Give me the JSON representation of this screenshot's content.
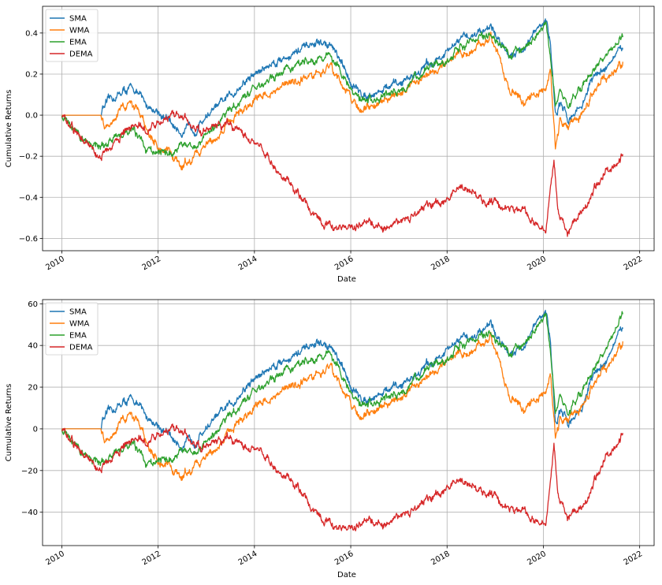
{
  "chart_data": [
    {
      "type": "line",
      "xlabel": "Date",
      "ylabel": "Cumulative Returns",
      "xlim": [
        2009.6,
        2022.3
      ],
      "ylim": [
        -0.66,
        0.53
      ],
      "xticks": [
        2010,
        2012,
        2014,
        2016,
        2018,
        2020,
        2022
      ],
      "yticks": [
        -0.6,
        -0.4,
        -0.2,
        0.0,
        0.2,
        0.4
      ],
      "ytick_labels": [
        "−0.6",
        "−0.4",
        "−0.2",
        "0.0",
        "0.2",
        "0.4"
      ],
      "grid": true,
      "legend_position": "top-left",
      "series": [
        {
          "name": "SMA",
          "color": "#1f77b4",
          "x": [
            2010.0,
            2010.4,
            2010.82,
            2010.83,
            2011.0,
            2011.3,
            2011.5,
            2011.75,
            2012.0,
            2012.3,
            2012.5,
            2012.8,
            2013.0,
            2013.3,
            2013.6,
            2014.0,
            2014.5,
            2015.0,
            2015.3,
            2015.6,
            2015.9,
            2016.2,
            2016.5,
            2017.0,
            2017.5,
            2018.0,
            2018.3,
            2018.6,
            2018.9,
            2019.0,
            2019.3,
            2019.6,
            2019.9,
            2020.05,
            2020.15,
            2020.25,
            2020.35,
            2020.5,
            2020.8,
            2021.0,
            2021.3,
            2021.65
          ],
          "y": [
            0.0,
            0.0,
            0.0,
            0.03,
            0.07,
            0.12,
            0.13,
            0.05,
            0.02,
            -0.05,
            -0.08,
            -0.06,
            0.0,
            0.05,
            0.12,
            0.2,
            0.27,
            0.32,
            0.35,
            0.34,
            0.2,
            0.1,
            0.11,
            0.15,
            0.23,
            0.3,
            0.37,
            0.4,
            0.44,
            0.39,
            0.3,
            0.33,
            0.42,
            0.46,
            0.35,
            0.0,
            0.05,
            -0.02,
            0.05,
            0.17,
            0.24,
            0.32
          ]
        },
        {
          "name": "WMA",
          "color": "#ff7f0e",
          "x": [
            2010.0,
            2010.4,
            2010.82,
            2010.9,
            2011.1,
            2011.4,
            2011.6,
            2011.8,
            2012.0,
            2012.3,
            2012.5,
            2012.8,
            2013.0,
            2013.3,
            2013.6,
            2014.0,
            2014.5,
            2015.0,
            2015.3,
            2015.6,
            2015.9,
            2016.2,
            2016.5,
            2017.0,
            2017.5,
            2018.0,
            2018.3,
            2018.6,
            2018.9,
            2019.0,
            2019.3,
            2019.6,
            2019.9,
            2020.05,
            2020.15,
            2020.25,
            2020.35,
            2020.5,
            2020.8,
            2021.0,
            2021.3,
            2021.65
          ],
          "y": [
            0.0,
            0.0,
            0.0,
            -0.05,
            0.0,
            0.05,
            0.03,
            -0.08,
            -0.15,
            -0.2,
            -0.24,
            -0.2,
            -0.15,
            -0.08,
            0.0,
            0.07,
            0.13,
            0.18,
            0.21,
            0.23,
            0.12,
            0.02,
            0.05,
            0.1,
            0.17,
            0.25,
            0.3,
            0.33,
            0.38,
            0.33,
            0.13,
            0.07,
            0.12,
            0.15,
            0.22,
            -0.16,
            -0.02,
            -0.06,
            0.0,
            0.1,
            0.18,
            0.26
          ]
        },
        {
          "name": "EMA",
          "color": "#2ca02c",
          "x": [
            2010.0,
            2010.2,
            2010.4,
            2010.6,
            2010.8,
            2011.0,
            2011.3,
            2011.5,
            2011.8,
            2012.0,
            2012.3,
            2012.5,
            2012.8,
            2013.0,
            2013.3,
            2013.6,
            2014.0,
            2014.5,
            2015.0,
            2015.3,
            2015.6,
            2015.9,
            2016.2,
            2016.5,
            2017.0,
            2017.5,
            2018.0,
            2018.3,
            2018.6,
            2018.9,
            2019.0,
            2019.3,
            2019.6,
            2019.9,
            2020.05,
            2020.15,
            2020.25,
            2020.35,
            2020.5,
            2020.8,
            2021.0,
            2021.3,
            2021.65
          ],
          "y": [
            0.0,
            -0.05,
            -0.12,
            -0.15,
            -0.16,
            -0.12,
            -0.1,
            -0.08,
            -0.18,
            -0.2,
            -0.17,
            -0.14,
            -0.15,
            -0.08,
            -0.02,
            0.05,
            0.13,
            0.2,
            0.25,
            0.27,
            0.29,
            0.16,
            0.06,
            0.08,
            0.13,
            0.2,
            0.28,
            0.33,
            0.38,
            0.4,
            0.36,
            0.28,
            0.32,
            0.4,
            0.44,
            0.3,
            0.05,
            0.1,
            0.05,
            0.12,
            0.22,
            0.3,
            0.38
          ]
        },
        {
          "name": "DEMA",
          "color": "#d62728",
          "x": [
            2010.0,
            2010.2,
            2010.4,
            2010.6,
            2010.8,
            2011.0,
            2011.3,
            2011.5,
            2011.8,
            2012.0,
            2012.3,
            2012.6,
            2012.9,
            2013.2,
            2013.5,
            2013.8,
            2014.0,
            2014.3,
            2014.6,
            2014.9,
            2015.2,
            2015.5,
            2015.8,
            2016.0,
            2016.3,
            2016.7,
            2017.0,
            2017.3,
            2017.6,
            2017.9,
            2018.0,
            2018.3,
            2018.6,
            2018.8,
            2019.0,
            2019.3,
            2019.6,
            2019.9,
            2020.05,
            2020.15,
            2020.22,
            2020.3,
            2020.5,
            2020.8,
            2021.0,
            2021.3,
            2021.65
          ],
          "y": [
            0.0,
            -0.05,
            -0.12,
            -0.16,
            -0.2,
            -0.15,
            -0.08,
            -0.05,
            -0.07,
            -0.04,
            0.02,
            -0.02,
            -0.08,
            -0.05,
            -0.04,
            -0.1,
            -0.14,
            -0.22,
            -0.3,
            -0.38,
            -0.47,
            -0.54,
            -0.55,
            -0.55,
            -0.52,
            -0.54,
            -0.52,
            -0.48,
            -0.45,
            -0.42,
            -0.4,
            -0.35,
            -0.38,
            -0.42,
            -0.43,
            -0.45,
            -0.47,
            -0.54,
            -0.55,
            -0.35,
            -0.2,
            -0.45,
            -0.58,
            -0.47,
            -0.38,
            -0.28,
            -0.19
          ]
        }
      ]
    },
    {
      "type": "line",
      "xlabel": "Date",
      "ylabel": "Cumulative Returns",
      "xlim": [
        2009.6,
        2022.3
      ],
      "ylim": [
        -56,
        62
      ],
      "xticks": [
        2010,
        2012,
        2014,
        2016,
        2018,
        2020,
        2022
      ],
      "yticks": [
        -40,
        -20,
        0,
        20,
        40,
        60
      ],
      "ytick_labels": [
        "−40",
        "−20",
        "0",
        "20",
        "40",
        "60"
      ],
      "grid": true,
      "legend_position": "top-left",
      "series": [
        {
          "name": "SMA",
          "color": "#1f77b4",
          "x": [
            2010.0,
            2010.4,
            2010.82,
            2010.83,
            2011.0,
            2011.3,
            2011.5,
            2011.75,
            2012.0,
            2012.3,
            2012.5,
            2012.8,
            2013.0,
            2013.3,
            2013.6,
            2014.0,
            2014.5,
            2015.0,
            2015.3,
            2015.6,
            2015.9,
            2016.2,
            2016.5,
            2017.0,
            2017.5,
            2018.0,
            2018.3,
            2018.6,
            2018.9,
            2019.0,
            2019.3,
            2019.6,
            2019.9,
            2020.05,
            2020.15,
            2020.25,
            2020.35,
            2020.5,
            2020.8,
            2021.0,
            2021.3,
            2021.65
          ],
          "y": [
            0,
            0,
            0,
            4,
            8,
            13,
            14,
            6,
            2,
            -5,
            -8,
            -5,
            1,
            7,
            14,
            24,
            32,
            37,
            41,
            39,
            25,
            14,
            16,
            20,
            29,
            37,
            43,
            45,
            52,
            45,
            37,
            40,
            52,
            56,
            42,
            2,
            8,
            3,
            10,
            24,
            33,
            48
          ]
        },
        {
          "name": "WMA",
          "color": "#ff7f0e",
          "x": [
            2010.0,
            2010.4,
            2010.82,
            2010.9,
            2011.1,
            2011.4,
            2011.6,
            2011.8,
            2012.0,
            2012.3,
            2012.5,
            2012.8,
            2013.0,
            2013.3,
            2013.6,
            2014.0,
            2014.5,
            2015.0,
            2015.3,
            2015.6,
            2015.9,
            2016.2,
            2016.5,
            2017.0,
            2017.5,
            2018.0,
            2018.3,
            2018.6,
            2018.9,
            2019.0,
            2019.3,
            2019.6,
            2019.9,
            2020.05,
            2020.15,
            2020.25,
            2020.35,
            2020.5,
            2020.8,
            2021.0,
            2021.3,
            2021.65
          ],
          "y": [
            0,
            0,
            0,
            -5,
            0,
            6,
            4,
            -8,
            -15,
            -20,
            -22,
            -18,
            -14,
            -6,
            2,
            10,
            17,
            23,
            27,
            29,
            16,
            5,
            9,
            14,
            22,
            32,
            36,
            39,
            44,
            38,
            16,
            10,
            16,
            20,
            26,
            -4,
            5,
            4,
            10,
            20,
            29,
            42
          ]
        },
        {
          "name": "EMA",
          "color": "#2ca02c",
          "x": [
            2010.0,
            2010.2,
            2010.4,
            2010.6,
            2010.8,
            2011.0,
            2011.3,
            2011.5,
            2011.8,
            2012.0,
            2012.3,
            2012.5,
            2012.8,
            2013.0,
            2013.3,
            2013.6,
            2014.0,
            2014.5,
            2015.0,
            2015.3,
            2015.6,
            2015.9,
            2016.2,
            2016.5,
            2017.0,
            2017.5,
            2018.0,
            2018.3,
            2018.6,
            2018.9,
            2019.0,
            2019.3,
            2019.6,
            2019.9,
            2020.05,
            2020.15,
            2020.25,
            2020.35,
            2020.5,
            2020.8,
            2021.0,
            2021.3,
            2021.65
          ],
          "y": [
            0,
            -5,
            -12,
            -15,
            -17,
            -13,
            -10,
            -8,
            -18,
            -17,
            -13,
            -10,
            -11,
            -5,
            2,
            9,
            18,
            26,
            31,
            34,
            36,
            21,
            10,
            13,
            18,
            26,
            35,
            40,
            44,
            47,
            42,
            35,
            40,
            50,
            54,
            39,
            8,
            14,
            8,
            16,
            28,
            39,
            55
          ]
        },
        {
          "name": "DEMA",
          "color": "#d62728",
          "x": [
            2010.0,
            2010.2,
            2010.4,
            2010.6,
            2010.8,
            2011.0,
            2011.3,
            2011.5,
            2011.8,
            2012.0,
            2012.3,
            2012.6,
            2012.9,
            2013.2,
            2013.5,
            2013.8,
            2014.0,
            2014.3,
            2014.6,
            2014.9,
            2015.2,
            2015.5,
            2015.8,
            2016.0,
            2016.3,
            2016.7,
            2017.0,
            2017.3,
            2017.6,
            2017.9,
            2018.0,
            2018.3,
            2018.6,
            2018.8,
            2019.0,
            2019.3,
            2019.6,
            2019.9,
            2020.05,
            2020.15,
            2020.22,
            2020.3,
            2020.5,
            2020.8,
            2021.0,
            2021.3,
            2021.65
          ],
          "y": [
            0,
            -5,
            -12,
            -16,
            -19,
            -14,
            -8,
            -5,
            -6,
            -3,
            2,
            -3,
            -9,
            -6,
            -4,
            -9,
            -10,
            -16,
            -22,
            -28,
            -38,
            -45,
            -48,
            -48,
            -44,
            -45,
            -42,
            -38,
            -35,
            -30,
            -27,
            -25,
            -28,
            -30,
            -33,
            -38,
            -40,
            -45,
            -44,
            -25,
            -5,
            -30,
            -43,
            -38,
            -28,
            -14,
            -2
          ]
        }
      ]
    }
  ]
}
